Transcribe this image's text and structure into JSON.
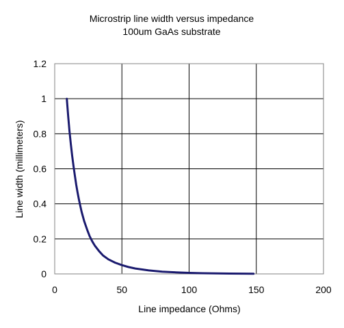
{
  "chart_data": {
    "type": "line",
    "title": "Microstrip line width versus impedance",
    "subtitle": "100um GaAs substrate",
    "xlabel": "Line impedance (Ohms)",
    "ylabel": "Line width (millimeters)",
    "xlim": [
      0,
      200
    ],
    "ylim": [
      0,
      1.2
    ],
    "xticks": [
      "0",
      "50",
      "100",
      "150",
      "200"
    ],
    "yticks": [
      "0",
      "0.2",
      "0.4",
      "0.6",
      "0.8",
      "1",
      "1.2"
    ],
    "grid": true,
    "legend": "none",
    "series": [
      {
        "color": "#1a1a6e",
        "x": [
          9,
          10,
          11,
          12,
          13,
          14,
          15,
          16,
          17,
          18,
          19,
          20,
          22,
          24,
          26,
          28,
          30,
          33,
          36,
          40,
          45,
          50,
          55,
          60,
          70,
          80,
          90,
          100,
          110,
          120,
          130,
          140,
          148
        ],
        "y": [
          1.0,
          0.9,
          0.815,
          0.74,
          0.675,
          0.615,
          0.56,
          0.51,
          0.465,
          0.425,
          0.39,
          0.355,
          0.3,
          0.255,
          0.215,
          0.185,
          0.16,
          0.13,
          0.105,
          0.083,
          0.064,
          0.05,
          0.039,
          0.031,
          0.02,
          0.013,
          0.009,
          0.006,
          0.004,
          0.003,
          0.002,
          0.0015,
          0.001
        ]
      }
    ]
  }
}
